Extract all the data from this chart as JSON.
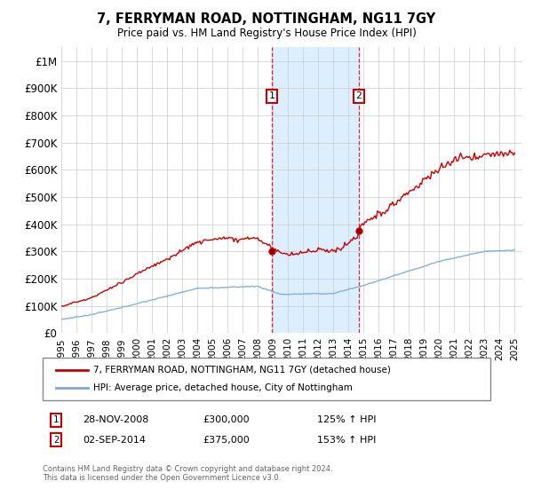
{
  "title": "7, FERRYMAN ROAD, NOTTINGHAM, NG11 7GY",
  "subtitle": "Price paid vs. HM Land Registry's House Price Index (HPI)",
  "ylim": [
    0,
    1050000
  ],
  "yticks": [
    0,
    100000,
    200000,
    300000,
    400000,
    500000,
    600000,
    700000,
    800000,
    900000,
    1000000
  ],
  "ytick_labels": [
    "£0",
    "£100K",
    "£200K",
    "£300K",
    "£400K",
    "£500K",
    "£600K",
    "£700K",
    "£800K",
    "£900K",
    "£1M"
  ],
  "sale1_date": 2008.92,
  "sale1_price": 300000,
  "sale2_date": 2014.67,
  "sale2_price": 375000,
  "red_line_color": "#cc0000",
  "blue_line_color": "#7aaace",
  "shade_color": "#ddeeff",
  "legend_label_red": "7, FERRYMAN ROAD, NOTTINGHAM, NG11 7GY (detached house)",
  "legend_label_blue": "HPI: Average price, detached house, City of Nottingham",
  "annotation1_date": "28-NOV-2008",
  "annotation1_price": "£300,000",
  "annotation1_hpi": "125% ↑ HPI",
  "annotation2_date": "02-SEP-2014",
  "annotation2_price": "£375,000",
  "annotation2_hpi": "153% ↑ HPI",
  "footer": "Contains HM Land Registry data © Crown copyright and database right 2024.\nThis data is licensed under the Open Government Licence v3.0.",
  "background_color": "#ffffff",
  "grid_color": "#cccccc"
}
